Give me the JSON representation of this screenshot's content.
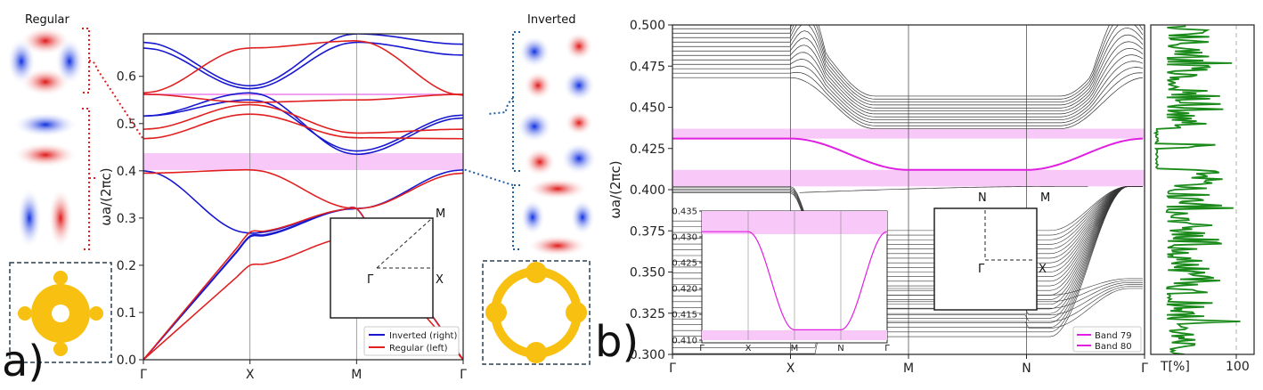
{
  "panel_labels": {
    "a": "a)",
    "b": "b)"
  },
  "side_labels": {
    "regular": "Regular",
    "inverted": "Inverted"
  },
  "chart_data": [
    {
      "type": "line",
      "ylabel": "ωa/(2πc)",
      "ylim": [
        0,
        0.69
      ],
      "yticks": [
        0.0,
        0.1,
        0.2,
        0.3,
        0.4,
        0.5,
        0.6
      ],
      "ytick_labels": [
        "0.0",
        "0.1",
        "0.2",
        "0.3",
        "0.4",
        "0.5",
        "0.6"
      ],
      "k_labels": [
        "Γ",
        "X",
        "M",
        "Γ"
      ],
      "bandgap": [
        0.402,
        0.437
      ],
      "thin_band": 0.562,
      "series": [
        {
          "name": "Inverted (right)",
          "color": "#1818d0",
          "bands": [
            [
              0.0,
              0.26,
              0.32,
              0.0
            ],
            [
              0.0,
              0.262,
              0.32,
              0.0
            ],
            [
              0.4,
              0.268,
              0.32,
              0.402
            ],
            [
              0.516,
              0.55,
              0.442,
              0.518
            ],
            [
              0.516,
              0.565,
              0.435,
              0.512
            ],
            [
              0.66,
              0.574,
              0.672,
              0.645
            ],
            [
              0.672,
              0.58,
              0.69,
              0.668
            ]
          ]
        },
        {
          "name": "Regular (left)",
          "color": "#e02020",
          "bands": [
            [
              0.0,
              0.2,
              0.26,
              0.0
            ],
            [
              0.0,
              0.27,
              0.32,
              0.0
            ],
            [
              0.395,
              0.402,
              0.32,
              0.395
            ],
            [
              0.468,
              0.52,
              0.47,
              0.468
            ],
            [
              0.488,
              0.54,
              0.48,
              0.488
            ],
            [
              0.562,
              0.545,
              0.55,
              0.562
            ],
            [
              0.565,
              0.66,
              0.675,
              0.56
            ]
          ]
        }
      ],
      "inset": {
        "labels": [
          "M",
          "Γ",
          "X"
        ]
      }
    },
    {
      "type": "line",
      "ylabel": "ωa/(2πc)",
      "ylim": [
        0.3,
        0.5
      ],
      "yticks": [
        0.3,
        0.325,
        0.35,
        0.375,
        0.4,
        0.425,
        0.45,
        0.475,
        0.5
      ],
      "ytick_labels": [
        "0.300",
        "0.325",
        "0.350",
        "0.375",
        "0.400",
        "0.425",
        "0.450",
        "0.475",
        "0.500"
      ],
      "k_labels": [
        "Γ",
        "X",
        "M",
        "N",
        "Γ"
      ],
      "bandgaps": [
        [
          0.431,
          0.437
        ],
        [
          0.402,
          0.412
        ]
      ],
      "band79": [
        0.431,
        0.431,
        0.412,
        0.412,
        0.431
      ],
      "band80": [
        0.431,
        0.431,
        0.412,
        0.412,
        0.431
      ],
      "legend": [
        "Band 79",
        "Band 80"
      ],
      "legend_color": "#e020e0",
      "inset": {
        "ylim": [
          0.41,
          0.435
        ],
        "yticks": [
          "0.410",
          "0.415",
          "0.420",
          "0.425",
          "0.430",
          "0.435"
        ],
        "k_labels": [
          "Γ",
          "X",
          "M",
          "N",
          "Γ"
        ]
      },
      "bz_inset": {
        "labels": [
          "N",
          "M",
          "Γ",
          "X"
        ]
      }
    },
    {
      "type": "line",
      "xlabel": "T[%]",
      "xtick_label": "100",
      "ylim": [
        0.3,
        0.5
      ],
      "color": "#1a8a1a"
    }
  ]
}
